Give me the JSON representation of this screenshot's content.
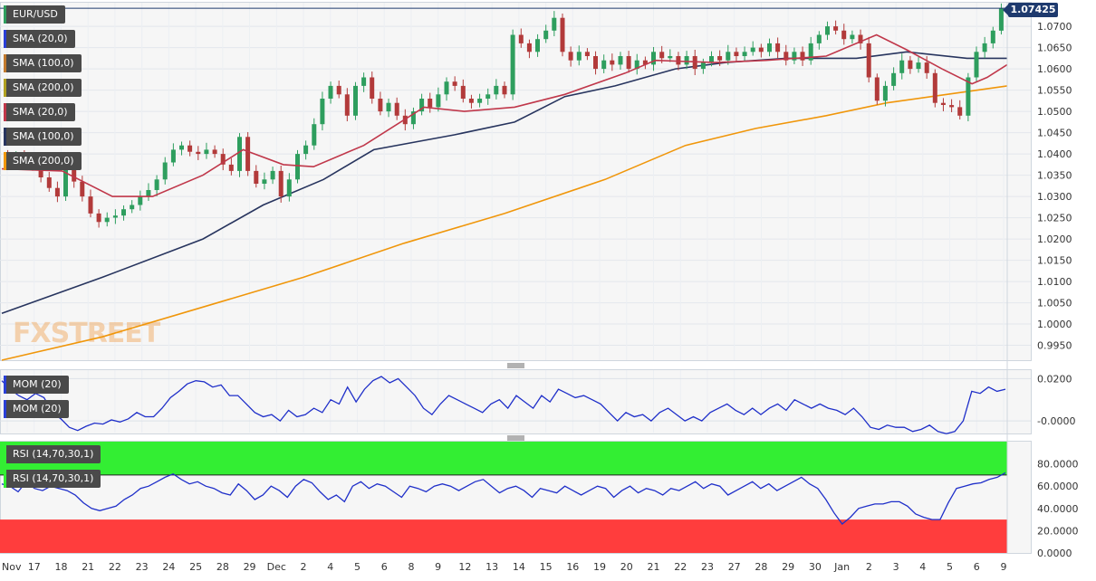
{
  "symbol": "EUR/USD",
  "last_price": "1.07425",
  "watermark": "FXSTREET",
  "legends": {
    "main": [
      "SMA (20,0)",
      "SMA (100,0)",
      "SMA (200,0)",
      "SMA (20,0)",
      "SMA (100,0)",
      "SMA (200,0)"
    ],
    "mom": [
      "MOM (20)",
      "MOM (20)"
    ],
    "rsi": [
      "RSI (14,70,30,1)",
      "RSI (14,70,30,1)"
    ]
  },
  "colors": {
    "sma20": "#c0374a",
    "sma100": "#27345e",
    "sma200": "#f0960a",
    "candle_up": "#2e9e5e",
    "candle_down": "#b23a3a",
    "indicator_line": "#1f2fc9",
    "overbought_zone": "#33ee33",
    "oversold_zone": "#ff3d3d",
    "last_price_line": "#1e3a6e"
  },
  "chart_data": [
    {
      "type": "candlestick",
      "ylim": [
        0.9915,
        1.0745
      ],
      "yticks": [
        "1.0700",
        "1.0650",
        "1.0600",
        "1.0550",
        "1.0500",
        "1.0450",
        "1.0400",
        "1.0350",
        "1.0300",
        "1.0250",
        "1.0200",
        "1.0150",
        "1.0100",
        "1.0050",
        "1.0000",
        "0.9950"
      ],
      "xticks": [
        "Nov",
        "17",
        "18",
        "21",
        "22",
        "23",
        "24",
        "25",
        "28",
        "29",
        "Dec",
        "2",
        "4",
        "5",
        "6",
        "8",
        "9",
        "12",
        "13",
        "14",
        "15",
        "16",
        "19",
        "20",
        "21",
        "22",
        "23",
        "27",
        "28",
        "29",
        "30",
        "Jan",
        "2",
        "3",
        "4",
        "5",
        "6",
        "9"
      ],
      "close_path": [
        1.039,
        1.0395,
        1.0385,
        1.0375,
        1.0345,
        1.032,
        1.03,
        1.037,
        1.0335,
        1.03,
        1.026,
        1.024,
        1.025,
        1.0255,
        1.027,
        1.028,
        1.03,
        1.0315,
        1.034,
        1.038,
        1.041,
        1.042,
        1.0405,
        1.04,
        1.041,
        1.04,
        1.0375,
        1.036,
        1.044,
        1.036,
        1.033,
        1.034,
        1.036,
        1.03,
        1.034,
        1.04,
        1.042,
        1.047,
        1.053,
        1.056,
        1.054,
        1.049,
        1.056,
        1.058,
        1.053,
        1.05,
        1.052,
        1.049,
        1.047,
        1.05,
        1.053,
        1.051,
        1.054,
        1.057,
        1.056,
        1.053,
        1.052,
        1.053,
        1.054,
        1.056,
        1.054,
        1.068,
        1.066,
        1.064,
        1.067,
        1.069,
        1.072,
        1.064,
        1.062,
        1.064,
        1.063,
        1.06,
        1.062,
        1.061,
        1.063,
        1.06,
        1.062,
        1.061,
        1.064,
        1.0625,
        1.063,
        1.061,
        1.063,
        1.06,
        1.0615,
        1.063,
        1.062,
        1.064,
        1.063,
        1.064,
        1.065,
        1.064,
        1.066,
        1.064,
        1.062,
        1.064,
        1.062,
        1.066,
        1.068,
        1.07,
        1.069,
        1.067,
        1.068,
        1.066,
        1.058,
        1.0525,
        1.056,
        1.059,
        1.062,
        1.06,
        1.0615,
        1.059,
        1.052,
        1.0515,
        1.051,
        1.049,
        1.058,
        1.064,
        1.066,
        1.069,
        1.07425
      ],
      "sma20_path": [
        [
          0,
          1.0365
        ],
        [
          0.06,
          1.036
        ],
        [
          0.11,
          1.03
        ],
        [
          0.15,
          1.03
        ],
        [
          0.2,
          1.035
        ],
        [
          0.24,
          1.041
        ],
        [
          0.28,
          1.0375
        ],
        [
          0.31,
          1.037
        ],
        [
          0.36,
          1.042
        ],
        [
          0.42,
          1.051
        ],
        [
          0.46,
          1.05
        ],
        [
          0.51,
          1.051
        ],
        [
          0.56,
          1.054
        ],
        [
          0.62,
          1.059
        ],
        [
          0.65,
          1.062
        ],
        [
          0.71,
          1.0615
        ],
        [
          0.76,
          1.062
        ],
        [
          0.82,
          1.063
        ],
        [
          0.87,
          1.068
        ],
        [
          0.9,
          1.0645
        ],
        [
          0.935,
          1.06
        ],
        [
          0.965,
          1.0565
        ],
        [
          0.98,
          1.058
        ],
        [
          1.0,
          1.061
        ]
      ],
      "sma100_path": [
        [
          0,
          1.0025
        ],
        [
          0.1,
          1.011
        ],
        [
          0.2,
          1.02
        ],
        [
          0.26,
          1.028
        ],
        [
          0.32,
          1.034
        ],
        [
          0.37,
          1.041
        ],
        [
          0.45,
          1.0445
        ],
        [
          0.51,
          1.0475
        ],
        [
          0.56,
          1.0535
        ],
        [
          0.61,
          1.056
        ],
        [
          0.67,
          1.06
        ],
        [
          0.72,
          1.0615
        ],
        [
          0.78,
          1.0625
        ],
        [
          0.85,
          1.0625
        ],
        [
          0.9,
          1.064
        ],
        [
          0.96,
          1.0625
        ],
        [
          1.0,
          1.0625
        ]
      ],
      "sma200_path": [
        [
          0,
          0.9915
        ],
        [
          0.1,
          0.997
        ],
        [
          0.2,
          1.004
        ],
        [
          0.3,
          1.011
        ],
        [
          0.4,
          1.019
        ],
        [
          0.5,
          1.026
        ],
        [
          0.6,
          1.034
        ],
        [
          0.68,
          1.042
        ],
        [
          0.75,
          1.046
        ],
        [
          0.82,
          1.049
        ],
        [
          0.88,
          1.052
        ],
        [
          0.94,
          1.054
        ],
        [
          1.0,
          1.056
        ]
      ]
    },
    {
      "type": "line",
      "name": "MOM (20)",
      "ylim": [
        -0.0055,
        0.024
      ],
      "yticks": [
        "0.0200",
        "-0.0000"
      ],
      "values": [
        0.019,
        0.015,
        0.012,
        0.01,
        0.013,
        0.011,
        0.004,
        0.001,
        -0.003,
        -0.0045,
        -0.0025,
        -0.001,
        -0.0015,
        0.0005,
        -0.0005,
        0.001,
        0.004,
        0.002,
        0.002,
        0.006,
        0.011,
        0.014,
        0.0175,
        0.019,
        0.0185,
        0.016,
        0.017,
        0.012,
        0.012,
        0.008,
        0.004,
        0.002,
        0.003,
        0.0,
        0.005,
        0.002,
        0.003,
        0.006,
        0.004,
        0.01,
        0.008,
        0.016,
        0.009,
        0.015,
        0.019,
        0.021,
        0.018,
        0.02,
        0.016,
        0.012,
        0.006,
        0.003,
        0.008,
        0.012,
        0.01,
        0.008,
        0.006,
        0.004,
        0.008,
        0.01,
        0.006,
        0.012,
        0.009,
        0.006,
        0.012,
        0.009,
        0.015,
        0.013,
        0.011,
        0.012,
        0.01,
        0.008,
        0.004,
        0.0,
        0.004,
        0.002,
        0.003,
        0.0,
        0.004,
        0.006,
        0.003,
        0.0,
        0.002,
        0.0,
        0.004,
        0.006,
        0.008,
        0.005,
        0.003,
        0.006,
        0.003,
        0.006,
        0.008,
        0.005,
        0.01,
        0.008,
        0.006,
        0.008,
        0.006,
        0.005,
        0.003,
        0.006,
        0.002,
        -0.003,
        -0.004,
        -0.002,
        -0.003,
        -0.003,
        -0.005,
        -0.004,
        -0.002,
        -0.005,
        -0.006,
        -0.005,
        0.0,
        0.014,
        0.013,
        0.016,
        0.014,
        0.015
      ]
    },
    {
      "type": "line",
      "name": "RSI (14,70,30,1)",
      "ylim": [
        0,
        100
      ],
      "yticks": [
        "80.0000",
        "60.0000",
        "40.0000",
        "20.0000",
        "0.0000"
      ],
      "overbought": 70,
      "oversold": 30,
      "values": [
        62,
        60,
        55,
        64,
        58,
        56,
        60,
        58,
        56,
        52,
        45,
        40,
        38,
        40,
        42,
        48,
        52,
        58,
        60,
        64,
        68,
        71,
        66,
        62,
        64,
        60,
        58,
        54,
        52,
        62,
        56,
        48,
        52,
        60,
        56,
        50,
        60,
        66,
        63,
        55,
        48,
        52,
        46,
        60,
        64,
        58,
        62,
        60,
        55,
        50,
        60,
        58,
        55,
        60,
        62,
        60,
        56,
        60,
        64,
        66,
        60,
        54,
        58,
        60,
        56,
        50,
        58,
        56,
        54,
        60,
        56,
        52,
        56,
        60,
        58,
        50,
        56,
        60,
        54,
        58,
        56,
        52,
        58,
        56,
        60,
        64,
        58,
        62,
        60,
        52,
        56,
        60,
        64,
        58,
        62,
        56,
        60,
        64,
        68,
        62,
        58,
        48,
        36,
        26,
        32,
        40,
        42,
        44,
        44,
        46,
        46,
        42,
        35,
        32,
        30,
        30,
        45,
        58,
        60,
        62,
        63,
        66,
        68,
        72
      ]
    }
  ]
}
